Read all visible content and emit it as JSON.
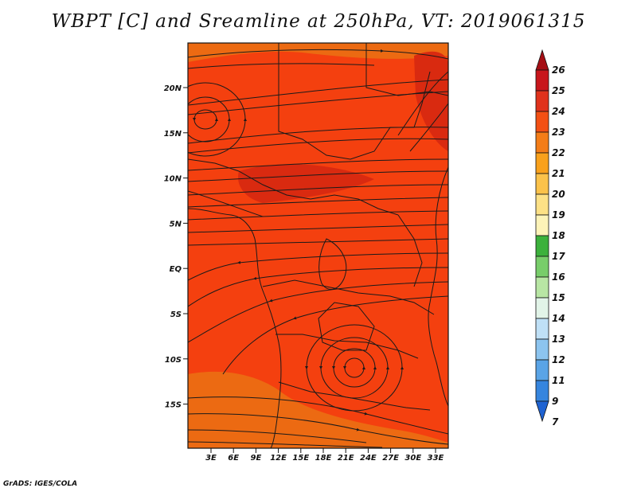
{
  "title": "WBPT [C] and Sreamline at 250hPa, VT: 2019061315",
  "credit": "GrADS: IGES/COLA",
  "map": {
    "lat_labels": [
      "20N",
      "15N",
      "10N",
      "5N",
      "EQ",
      "5S",
      "10S",
      "15S"
    ],
    "lon_labels": [
      "3E",
      "6E",
      "9E",
      "12E",
      "15E",
      "18E",
      "21E",
      "24E",
      "27E",
      "30E",
      "33E"
    ],
    "fill_color_main": "#f4400f",
    "fill_color_south": "#ec6a12",
    "fill_color_dark": "#d92a10",
    "streamline_color": "#1a1a1a",
    "coastline_color": "#1a1a1a"
  },
  "colorbar": {
    "labels": [
      "26",
      "25",
      "24",
      "23",
      "22",
      "21",
      "20",
      "19",
      "18",
      "17",
      "16",
      "15",
      "14",
      "13",
      "12",
      "11",
      "9",
      "7"
    ],
    "colors": [
      "#a50f15",
      "#c8161c",
      "#e0321c",
      "#f35014",
      "#f47d18",
      "#f9a11c",
      "#fbc24a",
      "#fde186",
      "#fdf3b8",
      "#3cb13c",
      "#78cd6a",
      "#b8e6a4",
      "#e2f4e8",
      "#bfe0f6",
      "#8cc4ef",
      "#5aa4e6",
      "#3685de",
      "#1f63d2"
    ]
  }
}
